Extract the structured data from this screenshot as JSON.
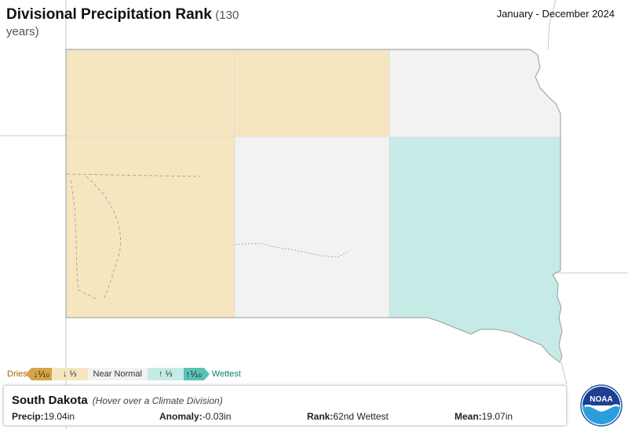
{
  "title": {
    "main": "Divisional Precipitation Rank",
    "sub": "(130 years)"
  },
  "period": "January - December 2024",
  "legend": {
    "driest": "Driest",
    "dark_dry": "↓⅒",
    "light_dry": "↓ ⅓",
    "normal": "Near Normal",
    "light_wet": "↑ ⅓",
    "dark_wet": "↑⅒",
    "wettest": "Wettest"
  },
  "colors": {
    "below_normal": "#f5e6c0",
    "near_normal": "#f2f2f2",
    "above_normal": "#c6ebe6",
    "border": "#bdbdbd"
  },
  "info": {
    "state": "South Dakota",
    "hint": "(Hover over a Climate Division)",
    "precip_label": "Precip:",
    "precip_value": "19.04in",
    "anomaly_label": "Anomaly:",
    "anomaly_value": "-0.03in",
    "rank_label": "Rank:",
    "rank_value": "62nd Wettest",
    "mean_label": "Mean:",
    "mean_value": "19.07in"
  },
  "divisions": [
    {
      "name": "northwest",
      "category": "below_normal"
    },
    {
      "name": "north-central",
      "category": "below_normal"
    },
    {
      "name": "northeast",
      "category": "near_normal"
    },
    {
      "name": "southwest",
      "category": "below_normal"
    },
    {
      "name": "central",
      "category": "near_normal"
    },
    {
      "name": "east-central/southeast",
      "category": "above_normal"
    }
  ],
  "logo": {
    "text": "NOAA"
  }
}
